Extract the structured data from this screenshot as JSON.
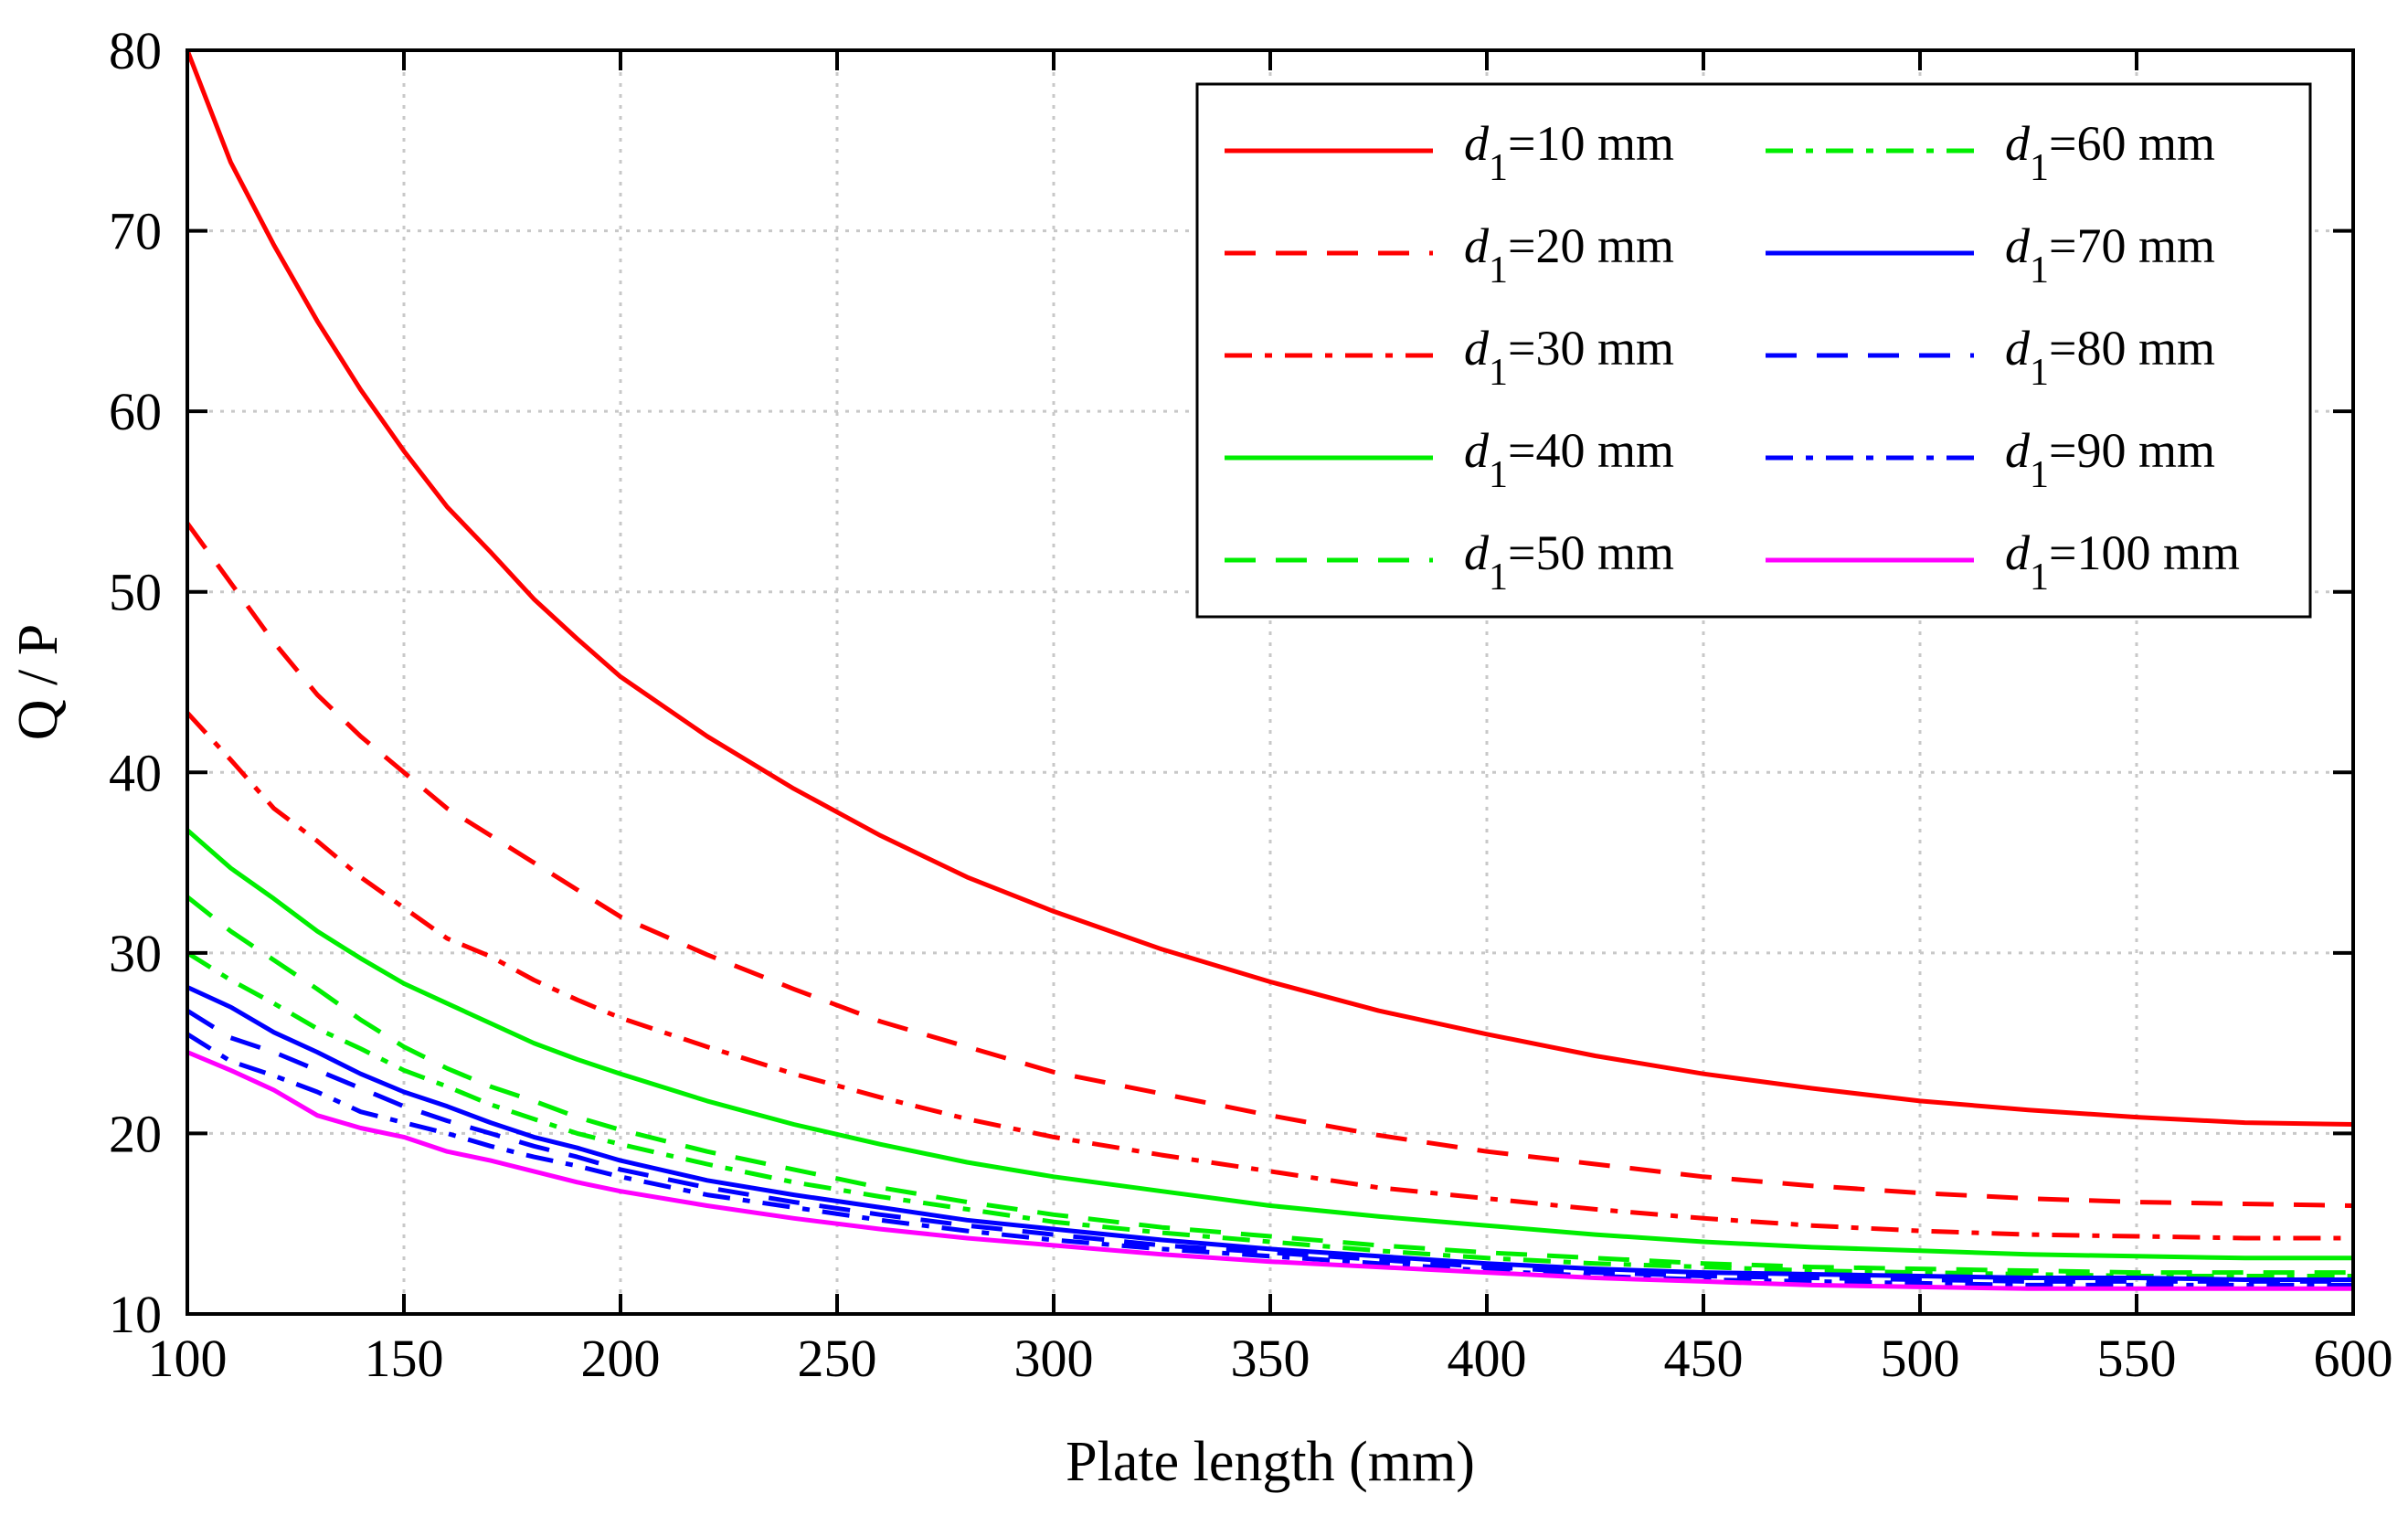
{
  "chart_data": {
    "type": "line",
    "title": "",
    "xlabel": "Plate length (mm)",
    "ylabel": "Q / P",
    "xlim": [
      100,
      600
    ],
    "ylim": [
      10,
      80
    ],
    "xticks": [
      100,
      150,
      200,
      250,
      300,
      350,
      400,
      450,
      500,
      550,
      600
    ],
    "yticks": [
      10,
      20,
      30,
      40,
      50,
      60,
      70,
      80
    ],
    "grid": true,
    "legend_position": "top-right",
    "legend_symbol": "d",
    "legend_subscript": "1",
    "x": [
      100,
      110,
      120,
      130,
      140,
      150,
      160,
      170,
      180,
      190,
      200,
      220,
      240,
      260,
      280,
      300,
      325,
      350,
      375,
      400,
      425,
      450,
      475,
      500,
      525,
      550,
      575,
      600
    ],
    "series": [
      {
        "name": "=10 mm",
        "color": "#ff0000",
        "dash": "solid",
        "values": [
          80.0,
          73.8,
          69.2,
          65.0,
          61.2,
          57.8,
          54.7,
          52.2,
          49.6,
          47.4,
          45.3,
          42.0,
          39.1,
          36.5,
          34.2,
          32.3,
          30.2,
          28.4,
          26.8,
          25.5,
          24.3,
          23.3,
          22.5,
          21.8,
          21.3,
          20.9,
          20.6,
          20.5
        ]
      },
      {
        "name": "=20 mm",
        "color": "#ff0000",
        "dash": "dashed",
        "values": [
          53.8,
          50.5,
          47.2,
          44.3,
          42.0,
          40.0,
          38.0,
          36.5,
          35.0,
          33.5,
          32.0,
          29.9,
          28.0,
          26.2,
          24.8,
          23.4,
          22.2,
          21.0,
          19.9,
          19.0,
          18.3,
          17.6,
          17.1,
          16.7,
          16.4,
          16.2,
          16.1,
          16.0
        ]
      },
      {
        "name": "=30 mm",
        "color": "#ff0000",
        "dash": "dashdot",
        "values": [
          43.3,
          40.7,
          38.0,
          36.2,
          34.2,
          32.5,
          30.8,
          29.8,
          28.5,
          27.4,
          26.4,
          24.8,
          23.3,
          22.0,
          20.8,
          19.8,
          18.8,
          17.9,
          17.0,
          16.4,
          15.8,
          15.3,
          14.9,
          14.6,
          14.4,
          14.3,
          14.2,
          14.2
        ]
      },
      {
        "name": "=40 mm",
        "color": "#00ee00",
        "dash": "solid",
        "values": [
          36.8,
          34.7,
          33.0,
          31.2,
          29.7,
          28.3,
          27.2,
          26.1,
          25.0,
          24.1,
          23.3,
          21.8,
          20.5,
          19.4,
          18.4,
          17.6,
          16.8,
          16.0,
          15.4,
          14.9,
          14.4,
          14.0,
          13.7,
          13.5,
          13.3,
          13.2,
          13.1,
          13.1
        ]
      },
      {
        "name": "=50 mm",
        "color": "#00ee00",
        "dash": "dashed",
        "values": [
          33.1,
          31.2,
          29.6,
          28.0,
          26.3,
          24.8,
          23.6,
          22.6,
          21.8,
          20.9,
          20.2,
          19.0,
          18.0,
          17.0,
          16.2,
          15.5,
          14.8,
          14.3,
          13.8,
          13.4,
          13.1,
          12.8,
          12.6,
          12.5,
          12.4,
          12.3,
          12.3,
          12.3
        ]
      },
      {
        "name": "=60 mm",
        "color": "#00ee00",
        "dash": "dashdot",
        "values": [
          30.0,
          28.5,
          27.2,
          25.8,
          24.7,
          23.5,
          22.6,
          21.6,
          20.8,
          20.0,
          19.4,
          18.3,
          17.3,
          16.5,
          15.8,
          15.1,
          14.5,
          14.0,
          13.5,
          13.1,
          12.8,
          12.6,
          12.4,
          12.3,
          12.2,
          12.1,
          12.1,
          12.1
        ]
      },
      {
        "name": "=70 mm",
        "color": "#0000ff",
        "dash": "solid",
        "values": [
          28.1,
          27.0,
          25.6,
          24.5,
          23.3,
          22.3,
          21.5,
          20.6,
          19.8,
          19.2,
          18.5,
          17.4,
          16.6,
          15.9,
          15.2,
          14.7,
          14.1,
          13.6,
          13.2,
          12.8,
          12.5,
          12.3,
          12.2,
          12.1,
          12.0,
          12.0,
          11.9,
          11.9
        ]
      },
      {
        "name": "=80 mm",
        "color": "#0000ff",
        "dash": "dashed",
        "values": [
          26.8,
          25.3,
          24.5,
          23.5,
          22.5,
          21.5,
          20.7,
          20.0,
          19.3,
          18.7,
          18.0,
          17.0,
          16.2,
          15.5,
          14.9,
          14.4,
          13.8,
          13.4,
          13.0,
          12.6,
          12.3,
          12.1,
          12.0,
          11.9,
          11.8,
          11.8,
          11.8,
          11.8
        ]
      },
      {
        "name": "=90 mm",
        "color": "#0000ff",
        "dash": "dashdot",
        "values": [
          25.5,
          24.0,
          23.2,
          22.3,
          21.2,
          20.6,
          20.0,
          19.3,
          18.7,
          18.2,
          17.6,
          16.6,
          15.9,
          15.2,
          14.6,
          14.1,
          13.6,
          13.2,
          12.8,
          12.4,
          12.1,
          11.9,
          11.8,
          11.7,
          11.6,
          11.6,
          11.6,
          11.6
        ]
      },
      {
        "name": "=100 mm",
        "color": "#ff00ff",
        "dash": "solid",
        "values": [
          24.5,
          23.5,
          22.4,
          21.0,
          20.3,
          19.8,
          19.0,
          18.5,
          17.9,
          17.3,
          16.8,
          16.0,
          15.3,
          14.7,
          14.2,
          13.8,
          13.3,
          12.9,
          12.6,
          12.3,
          12.0,
          11.8,
          11.6,
          11.5,
          11.4,
          11.4,
          11.4,
          11.4
        ]
      }
    ]
  }
}
